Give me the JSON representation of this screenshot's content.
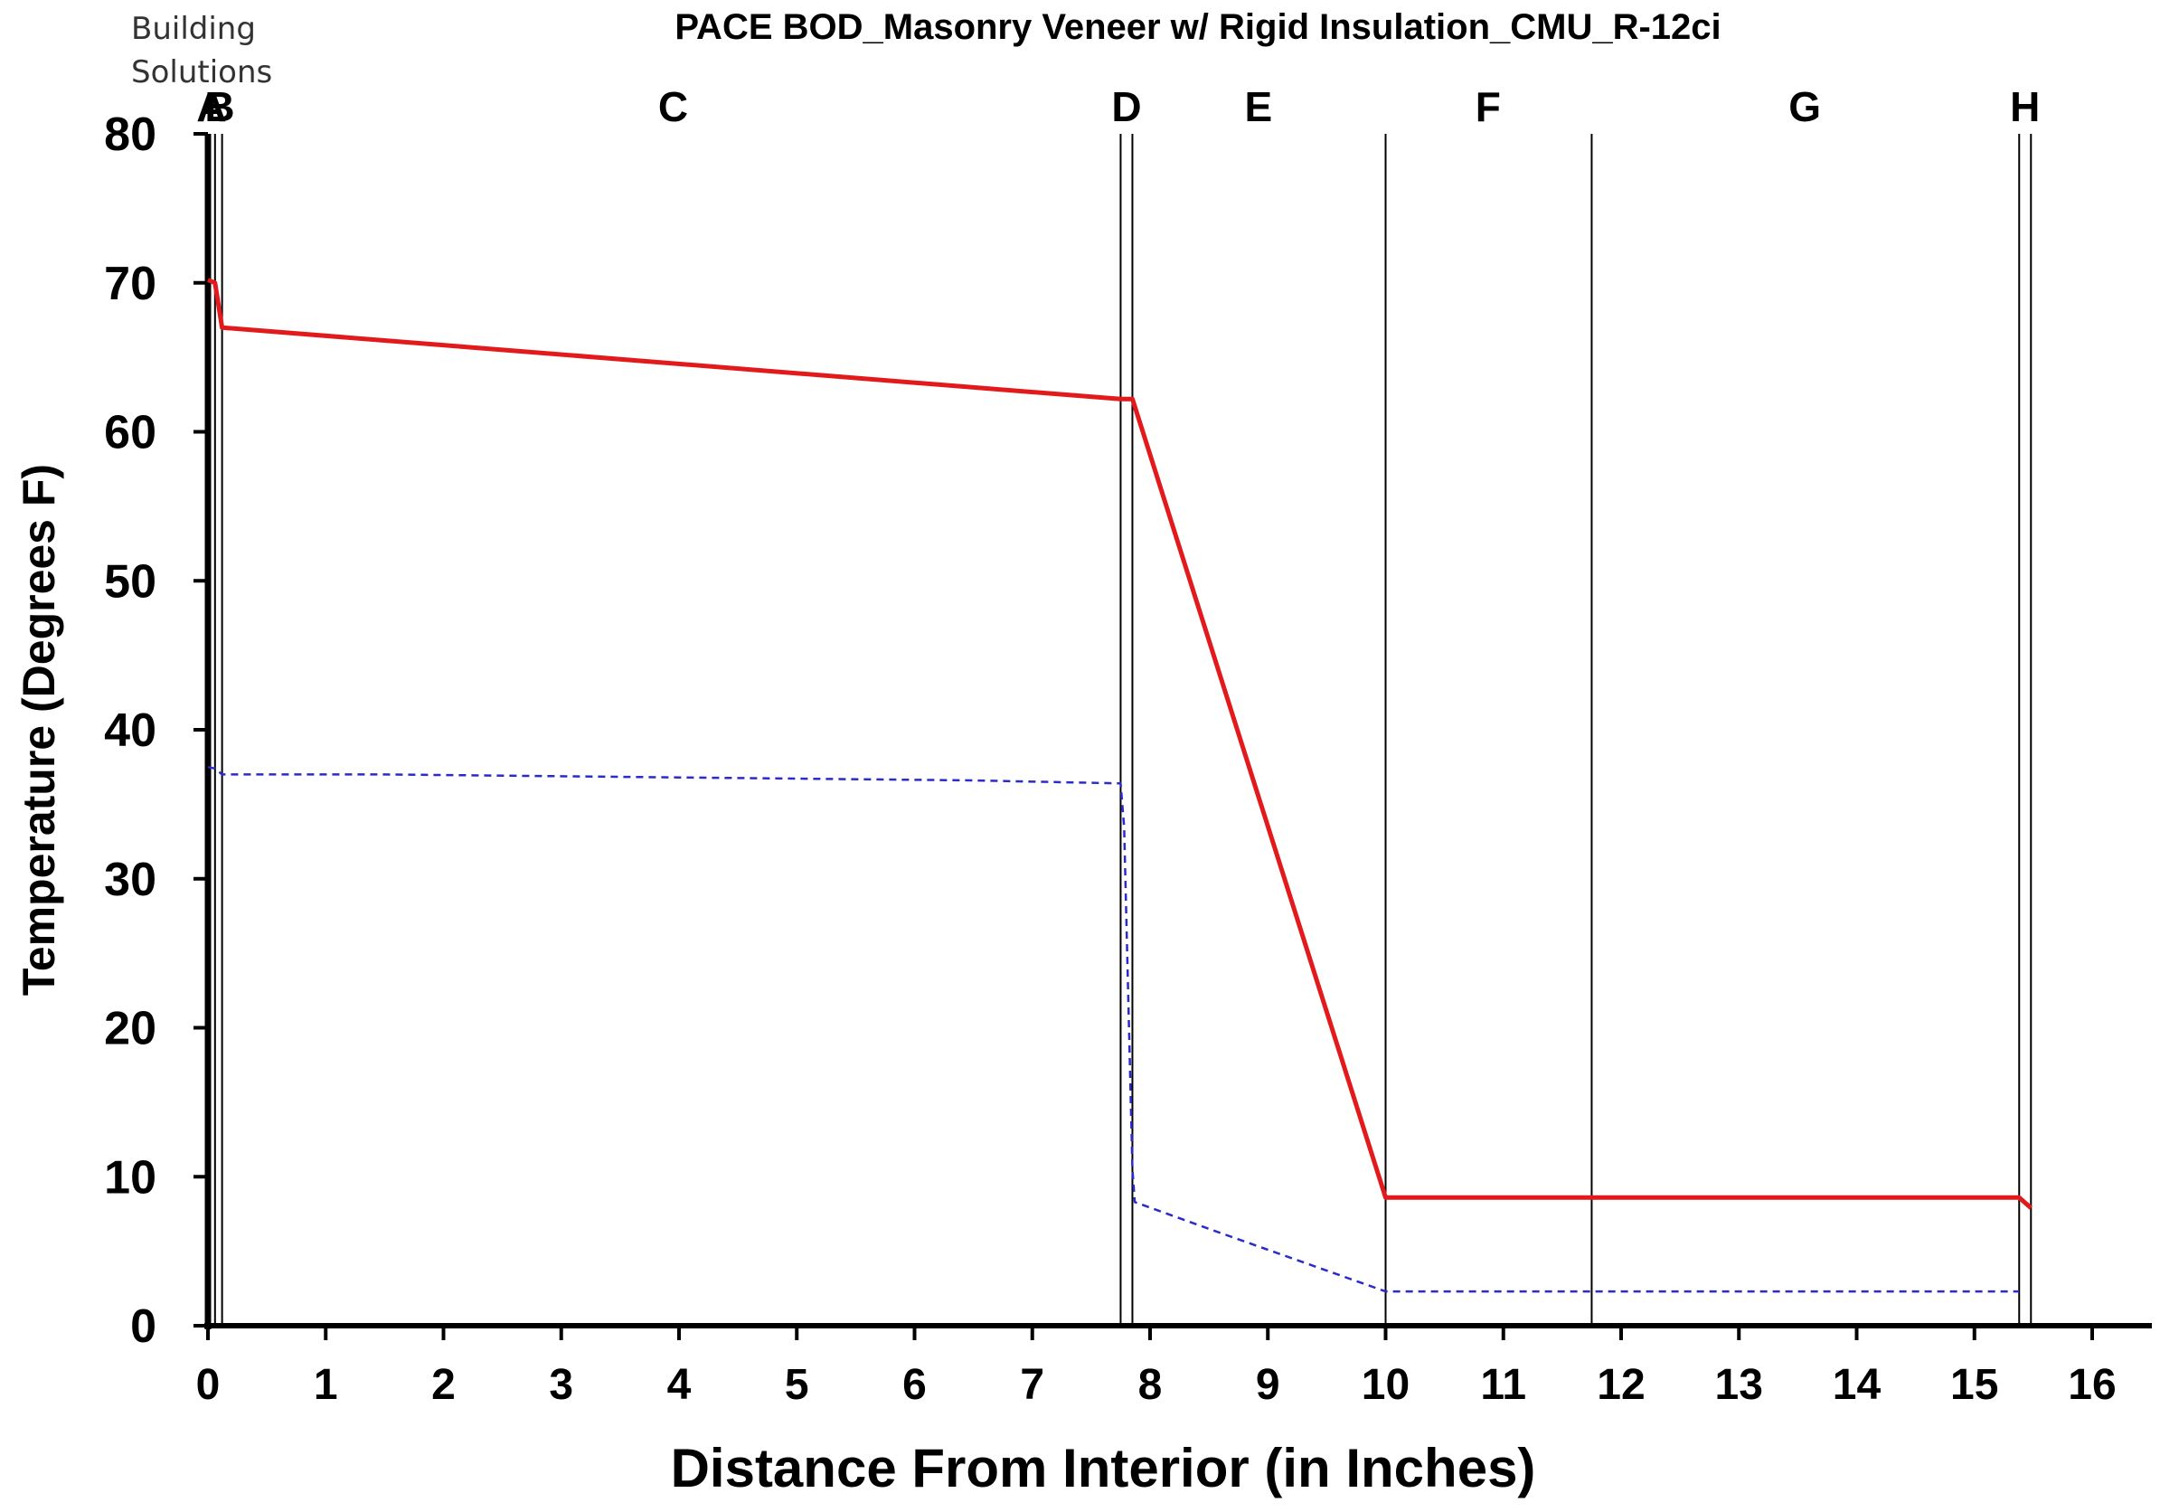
{
  "brand": {
    "line1": "Building",
    "line2": "Solutions"
  },
  "chart_data": {
    "type": "line",
    "title": "PACE BOD_Masonry Veneer w/ Rigid Insulation_CMU_R-12ci",
    "xlabel": "Distance From Interior (in Inches)",
    "ylabel": "Temperature (Degrees F)",
    "xlim": [
      0,
      16
    ],
    "ylim": [
      0,
      80
    ],
    "xticks": [
      "0",
      "1",
      "2",
      "3",
      "4",
      "5",
      "6",
      "7",
      "8",
      "9",
      "10",
      "11",
      "12",
      "13",
      "14",
      "15",
      "16"
    ],
    "yticks": [
      "0",
      "10",
      "20",
      "30",
      "40",
      "50",
      "60",
      "70",
      "80"
    ],
    "grid": false,
    "layer_boundaries": [
      0.0,
      0.06,
      0.12,
      7.75,
      7.85,
      10.0,
      11.75,
      15.38,
      15.48
    ],
    "layer_labels": [
      {
        "label": "A",
        "x": 0.03
      },
      {
        "label": "B",
        "x": 0.1
      },
      {
        "label": "C",
        "x": 3.95
      },
      {
        "label": "D",
        "x": 7.8
      },
      {
        "label": "E",
        "x": 8.92
      },
      {
        "label": "F",
        "x": 10.87
      },
      {
        "label": "G",
        "x": 13.56
      },
      {
        "label": "H",
        "x": 15.43
      }
    ],
    "series": [
      {
        "color": "#e31a1c",
        "style": "solid",
        "points": [
          [
            0.0,
            70.2
          ],
          [
            0.06,
            70.0
          ],
          [
            0.12,
            67.0
          ],
          [
            7.75,
            62.2
          ],
          [
            7.85,
            62.2
          ],
          [
            10.0,
            8.6
          ],
          [
            11.75,
            8.6
          ],
          [
            15.38,
            8.6
          ],
          [
            15.48,
            7.9
          ]
        ]
      },
      {
        "color": "#2b2bc9",
        "style": "dashed",
        "points": [
          [
            0.0,
            37.5
          ],
          [
            0.06,
            37.4
          ],
          [
            0.12,
            37.0
          ],
          [
            1.5,
            37.0
          ],
          [
            4.0,
            36.8
          ],
          [
            6.5,
            36.6
          ],
          [
            7.75,
            36.4
          ],
          [
            7.78,
            33.5
          ],
          [
            7.85,
            10.5
          ],
          [
            7.87,
            8.3
          ],
          [
            8.5,
            6.5
          ],
          [
            10.0,
            2.3
          ],
          [
            11.75,
            2.3
          ],
          [
            15.38,
            2.3
          ]
        ]
      }
    ]
  }
}
